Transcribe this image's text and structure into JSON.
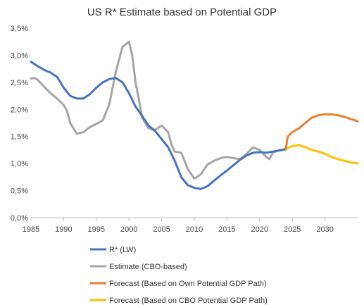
{
  "chart_data": {
    "type": "line",
    "title": "US R* Estimate based on Potential GDP",
    "xlabel": "",
    "ylabel": "",
    "xlim": [
      1985,
      2035
    ],
    "ylim": [
      0,
      3.5
    ],
    "x_ticks": [
      1985,
      1990,
      1995,
      2000,
      2005,
      2010,
      2015,
      2020,
      2025,
      2030
    ],
    "x_tick_labels": [
      "1985",
      "1990",
      "1995",
      "2000",
      "2005",
      "2010",
      "2015",
      "2020",
      "2025",
      "2030"
    ],
    "y_ticks": [
      0,
      0.5,
      1.0,
      1.5,
      2.0,
      2.5,
      3.0,
      3.5
    ],
    "y_tick_labels": [
      "0,0%",
      "0,5%",
      "1,0%",
      "1,5%",
      "2,0%",
      "2,5%",
      "3,0%",
      "3,5%"
    ],
    "grid": false,
    "legend_position": "bottom",
    "series": [
      {
        "name": "R* (LW)",
        "color": "#4472C4",
        "points": [
          [
            1985,
            2.88
          ],
          [
            1986,
            2.8
          ],
          [
            1987,
            2.73
          ],
          [
            1988,
            2.68
          ],
          [
            1989,
            2.6
          ],
          [
            1990,
            2.4
          ],
          [
            1991,
            2.25
          ],
          [
            1992,
            2.2
          ],
          [
            1993,
            2.2
          ],
          [
            1994,
            2.28
          ],
          [
            1995,
            2.4
          ],
          [
            1996,
            2.5
          ],
          [
            1997,
            2.56
          ],
          [
            1998,
            2.58
          ],
          [
            1999,
            2.5
          ],
          [
            2000,
            2.3
          ],
          [
            2001,
            2.05
          ],
          [
            2002,
            1.88
          ],
          [
            2003,
            1.7
          ],
          [
            2004,
            1.6
          ],
          [
            2005,
            1.45
          ],
          [
            2006,
            1.3
          ],
          [
            2007,
            1.05
          ],
          [
            2008,
            0.75
          ],
          [
            2009,
            0.6
          ],
          [
            2010,
            0.55
          ],
          [
            2011,
            0.53
          ],
          [
            2012,
            0.58
          ],
          [
            2013,
            0.68
          ],
          [
            2014,
            0.78
          ],
          [
            2015,
            0.87
          ],
          [
            2016,
            0.97
          ],
          [
            2017,
            1.07
          ],
          [
            2018,
            1.15
          ],
          [
            2019,
            1.2
          ],
          [
            2020,
            1.21
          ],
          [
            2021,
            1.2
          ],
          [
            2022,
            1.22
          ],
          [
            2023,
            1.24
          ],
          [
            2024,
            1.27
          ]
        ]
      },
      {
        "name": "Estimate (CBO-based)",
        "color": "#A5A5A5",
        "points": [
          [
            1985,
            2.57
          ],
          [
            1985.5,
            2.58
          ],
          [
            1986,
            2.55
          ],
          [
            1987,
            2.42
          ],
          [
            1988,
            2.3
          ],
          [
            1989,
            2.2
          ],
          [
            1990,
            2.08
          ],
          [
            1990.5,
            1.98
          ],
          [
            1991,
            1.75
          ],
          [
            1992,
            1.55
          ],
          [
            1993,
            1.58
          ],
          [
            1994,
            1.67
          ],
          [
            1995,
            1.73
          ],
          [
            1996,
            1.8
          ],
          [
            1997,
            2.1
          ],
          [
            1998,
            2.7
          ],
          [
            1999,
            3.15
          ],
          [
            2000,
            3.25
          ],
          [
            2000.5,
            3.0
          ],
          [
            2001,
            2.5
          ],
          [
            2001.5,
            2.2
          ],
          [
            2002,
            1.85
          ],
          [
            2003,
            1.65
          ],
          [
            2004,
            1.62
          ],
          [
            2005,
            1.7
          ],
          [
            2006,
            1.58
          ],
          [
            2006.5,
            1.35
          ],
          [
            2007,
            1.22
          ],
          [
            2008,
            1.2
          ],
          [
            2009,
            0.9
          ],
          [
            2010,
            0.72
          ],
          [
            2011,
            0.8
          ],
          [
            2012,
            0.98
          ],
          [
            2013,
            1.05
          ],
          [
            2014,
            1.1
          ],
          [
            2015,
            1.12
          ],
          [
            2016,
            1.1
          ],
          [
            2017,
            1.08
          ],
          [
            2018,
            1.18
          ],
          [
            2019,
            1.3
          ],
          [
            2020,
            1.25
          ],
          [
            2021,
            1.12
          ],
          [
            2021.5,
            1.08
          ],
          [
            2022,
            1.2
          ],
          [
            2023,
            1.25
          ],
          [
            2024,
            1.25
          ]
        ]
      },
      {
        "name": "Forecast (Based on Own Potential GDP Path)",
        "color": "#ED7D31",
        "points": [
          [
            2024,
            1.27
          ],
          [
            2024.3,
            1.5
          ],
          [
            2025,
            1.58
          ],
          [
            2026,
            1.65
          ],
          [
            2027,
            1.75
          ],
          [
            2028,
            1.85
          ],
          [
            2029,
            1.89
          ],
          [
            2030,
            1.91
          ],
          [
            2031,
            1.91
          ],
          [
            2032,
            1.89
          ],
          [
            2033,
            1.86
          ],
          [
            2034,
            1.82
          ],
          [
            2035,
            1.78
          ]
        ]
      },
      {
        "name": "Forecast (Based on CBO Potential GDP Path)",
        "color": "#FFC000",
        "points": [
          [
            2024,
            1.27
          ],
          [
            2025,
            1.32
          ],
          [
            2026,
            1.34
          ],
          [
            2027,
            1.3
          ],
          [
            2028,
            1.25
          ],
          [
            2029,
            1.22
          ],
          [
            2030,
            1.18
          ],
          [
            2031,
            1.12
          ],
          [
            2032,
            1.08
          ],
          [
            2033,
            1.05
          ],
          [
            2034,
            1.02
          ],
          [
            2035,
            1.0
          ]
        ]
      }
    ]
  }
}
